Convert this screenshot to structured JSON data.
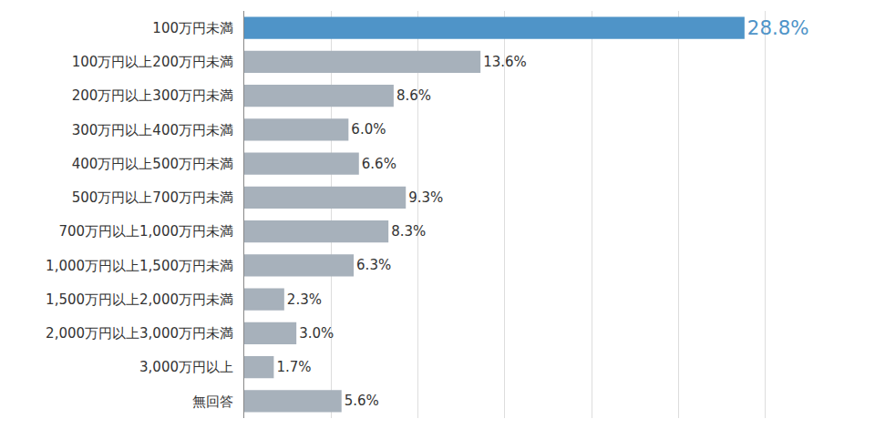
{
  "chart_data": {
    "type": "bar",
    "orientation": "horizontal",
    "categories": [
      "100万円未満",
      "100万円以上200万円未満",
      "200万円以上300万円未満",
      "300万円以上400万円未満",
      "400万円以上500万円未満",
      "500万円以上700万円未満",
      "700万円以上1,000万円未満",
      "1,000万円以上1,500万円未満",
      "1,500万円以上2,000万円未満",
      "2,000万円以上3,000万円未満",
      "3,000万円以上",
      "無回答"
    ],
    "values": [
      28.8,
      13.6,
      8.6,
      6.0,
      6.6,
      9.3,
      8.3,
      6.3,
      2.3,
      3.0,
      1.7,
      5.6
    ],
    "value_labels": [
      "28.8%",
      "13.6%",
      "8.6%",
      "6.0%",
      "6.6%",
      "9.3%",
      "8.3%",
      "6.3%",
      "2.3%",
      "3.0%",
      "1.7%",
      "5.6%"
    ],
    "colors": [
      "#4f94c8",
      "#a7b1bb",
      "#a7b1bb",
      "#a7b1bb",
      "#a7b1bb",
      "#a7b1bb",
      "#a7b1bb",
      "#a7b1bb",
      "#a7b1bb",
      "#a7b1bb",
      "#a7b1bb",
      "#a7b1bb"
    ],
    "xlim": [
      0,
      35
    ],
    "xticks": [
      0,
      5,
      10,
      15,
      20,
      25,
      30,
      35
    ],
    "grid": true,
    "data_labels": true,
    "tick_labels": "y"
  }
}
